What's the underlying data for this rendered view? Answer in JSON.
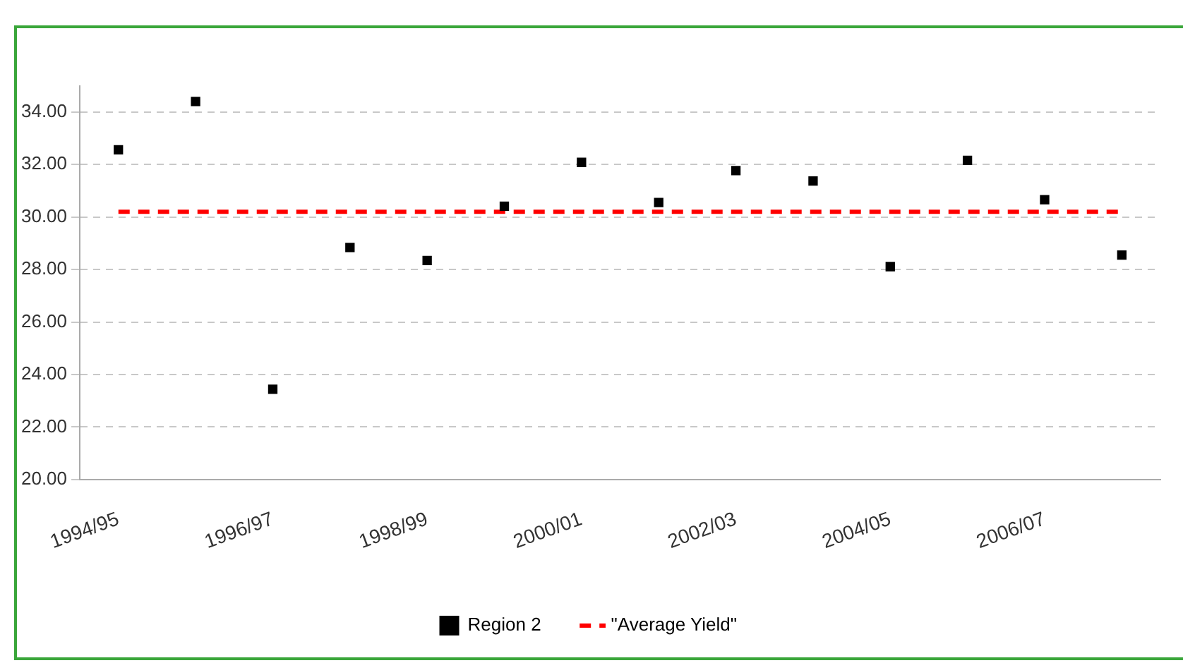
{
  "chart_data": {
    "type": "scatter",
    "categories": [
      "1994/95",
      null,
      "1996/97",
      null,
      "1998/99",
      null,
      "2000/01",
      null,
      "2002/03",
      null,
      "2004/05",
      null,
      "2006/07",
      null
    ],
    "series": [
      {
        "name": "Region 2",
        "type": "scatter",
        "color": "#000000",
        "marker": "square",
        "values": [
          32.56,
          34.4,
          23.44,
          28.84,
          28.34,
          30.41,
          32.08,
          30.55,
          31.77,
          31.37,
          28.11,
          32.16,
          30.66,
          28.55
        ]
      },
      {
        "name": "\"Average Yield\"",
        "type": "line",
        "color": "#ff0000",
        "line_style": "dashed",
        "marker": "none",
        "values": [
          30.2,
          30.2,
          30.2,
          30.2,
          30.2,
          30.2,
          30.2,
          30.2,
          30.2,
          30.2,
          30.2,
          30.2,
          30.2,
          30.2
        ]
      }
    ],
    "ylim": [
      20,
      35
    ],
    "yticks": [
      {
        "value": 20,
        "label": "20.00"
      },
      {
        "value": 22,
        "label": "22.00"
      },
      {
        "value": 24,
        "label": "24.00"
      },
      {
        "value": 26,
        "label": "26.00"
      },
      {
        "value": 28,
        "label": "28.00"
      },
      {
        "value": 30,
        "label": "30.00"
      },
      {
        "value": 32,
        "label": "32.00"
      },
      {
        "value": 34,
        "label": "34.00"
      }
    ],
    "grid": "y",
    "legend": "bottom"
  }
}
